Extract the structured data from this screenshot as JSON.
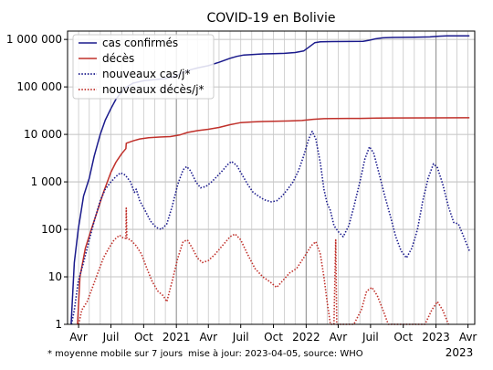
{
  "chart_data": {
    "type": "line",
    "title": "COVID-19 en Bolivie",
    "yscale": "log",
    "ylim": [
      1,
      1500000
    ],
    "xlim": [
      "2020-03-01",
      "2023-04-20"
    ],
    "grid": true,
    "legend_position": "top-left",
    "y_ticks": [
      {
        "value": 1,
        "label": "1"
      },
      {
        "value": 10,
        "label": "10"
      },
      {
        "value": 100,
        "label": "100"
      },
      {
        "value": 1000,
        "label": "1 000"
      },
      {
        "value": 10000,
        "label": "10 000"
      },
      {
        "value": 100000,
        "label": "100 000"
      },
      {
        "value": 1000000,
        "label": "1 000 000"
      }
    ],
    "x_ticks": [
      {
        "date": "2020-04-01",
        "label": "Avr"
      },
      {
        "date": "2020-07-01",
        "label": "Juil"
      },
      {
        "date": "2020-10-01",
        "label": "Oct"
      },
      {
        "date": "2021-01-01",
        "label": "2021"
      },
      {
        "date": "2021-04-01",
        "label": "Avr"
      },
      {
        "date": "2021-07-01",
        "label": "Juil"
      },
      {
        "date": "2021-10-01",
        "label": "Oct"
      },
      {
        "date": "2022-01-01",
        "label": "2022"
      },
      {
        "date": "2022-04-01",
        "label": "Avr"
      },
      {
        "date": "2022-07-01",
        "label": "Juil"
      },
      {
        "date": "2022-10-01",
        "label": "Oct"
      },
      {
        "date": "2023-01-01",
        "label": "2023"
      },
      {
        "date": "2023-04-01",
        "label": "Avr"
      }
    ],
    "x_subtitle": "2023",
    "series": [
      {
        "name": "cas confirmés",
        "color": "#1a1a8c",
        "style": "solid",
        "points": [
          [
            "2020-03-11",
            1
          ],
          [
            "2020-03-20",
            20
          ],
          [
            "2020-03-31",
            100
          ],
          [
            "2020-04-15",
            500
          ],
          [
            "2020-05-01",
            1200
          ],
          [
            "2020-05-15",
            3500
          ],
          [
            "2020-06-01",
            10000
          ],
          [
            "2020-06-15",
            20000
          ],
          [
            "2020-07-01",
            35000
          ],
          [
            "2020-07-15",
            55000
          ],
          [
            "2020-08-01",
            80000
          ],
          [
            "2020-08-15",
            100000
          ],
          [
            "2020-09-01",
            120000
          ],
          [
            "2020-10-01",
            135000
          ],
          [
            "2020-11-01",
            143000
          ],
          [
            "2020-12-01",
            150000
          ],
          [
            "2020-12-20",
            160000
          ],
          [
            "2021-01-10",
            185000
          ],
          [
            "2021-01-25",
            210000
          ],
          [
            "2021-02-10",
            230000
          ],
          [
            "2021-03-01",
            250000
          ],
          [
            "2021-04-01",
            280000
          ],
          [
            "2021-05-01",
            330000
          ],
          [
            "2021-06-01",
            400000
          ],
          [
            "2021-06-20",
            440000
          ],
          [
            "2021-07-10",
            470000
          ],
          [
            "2021-08-01",
            480000
          ],
          [
            "2021-09-01",
            495000
          ],
          [
            "2021-10-01",
            502000
          ],
          [
            "2021-11-01",
            510000
          ],
          [
            "2021-12-01",
            530000
          ],
          [
            "2021-12-25",
            570000
          ],
          [
            "2022-01-10",
            700000
          ],
          [
            "2022-01-25",
            850000
          ],
          [
            "2022-02-10",
            890000
          ],
          [
            "2022-03-15",
            900000
          ],
          [
            "2022-05-01",
            905000
          ],
          [
            "2022-06-10",
            910000
          ],
          [
            "2022-06-25",
            950000
          ],
          [
            "2022-07-15",
            1030000
          ],
          [
            "2022-08-05",
            1080000
          ],
          [
            "2022-09-01",
            1100000
          ],
          [
            "2022-11-01",
            1110000
          ],
          [
            "2022-12-15",
            1130000
          ],
          [
            "2023-01-10",
            1170000
          ],
          [
            "2023-02-01",
            1185000
          ],
          [
            "2023-04-05",
            1190000
          ]
        ]
      },
      {
        "name": "décès",
        "color": "#c0302a",
        "style": "solid",
        "points": [
          [
            "2020-03-29",
            1
          ],
          [
            "2020-04-05",
            10
          ],
          [
            "2020-04-20",
            40
          ],
          [
            "2020-05-05",
            90
          ],
          [
            "2020-05-20",
            200
          ],
          [
            "2020-06-10",
            600
          ],
          [
            "2020-07-01",
            1600
          ],
          [
            "2020-07-15",
            2600
          ],
          [
            "2020-08-01",
            4000
          ],
          [
            "2020-08-12",
            5000
          ],
          [
            "2020-08-13",
            6500
          ],
          [
            "2020-09-01",
            7300
          ],
          [
            "2020-09-20",
            8000
          ],
          [
            "2020-10-15",
            8500
          ],
          [
            "2020-11-15",
            8800
          ],
          [
            "2020-12-15",
            9000
          ],
          [
            "2021-01-10",
            9700
          ],
          [
            "2021-02-01",
            11000
          ],
          [
            "2021-03-01",
            12000
          ],
          [
            "2021-04-01",
            12800
          ],
          [
            "2021-05-01",
            14000
          ],
          [
            "2021-06-01",
            16000
          ],
          [
            "2021-07-01",
            17700
          ],
          [
            "2021-08-01",
            18300
          ],
          [
            "2021-09-01",
            18700
          ],
          [
            "2021-10-01",
            18900
          ],
          [
            "2021-11-15",
            19200
          ],
          [
            "2021-12-20",
            19600
          ],
          [
            "2022-01-20",
            20800
          ],
          [
            "2022-02-20",
            21400
          ],
          [
            "2022-03-20",
            21600
          ],
          [
            "2022-06-01",
            21700
          ],
          [
            "2022-07-20",
            22000
          ],
          [
            "2022-09-01",
            22200
          ],
          [
            "2023-01-01",
            22300
          ],
          [
            "2023-04-05",
            22350
          ]
        ]
      },
      {
        "name": "nouveaux cas/j*",
        "color": "#1a1a8c",
        "style": "dotted",
        "points": [
          [
            "2020-03-12",
            1
          ],
          [
            "2020-03-20",
            2
          ],
          [
            "2020-03-31",
            8
          ],
          [
            "2020-04-15",
            20
          ],
          [
            "2020-05-01",
            60
          ],
          [
            "2020-05-15",
            150
          ],
          [
            "2020-06-01",
            400
          ],
          [
            "2020-06-15",
            700
          ],
          [
            "2020-07-01",
            1000
          ],
          [
            "2020-07-15",
            1300
          ],
          [
            "2020-07-28",
            1550
          ],
          [
            "2020-08-10",
            1400
          ],
          [
            "2020-08-25",
            1000
          ],
          [
            "2020-09-05",
            600
          ],
          [
            "2020-09-10",
            700
          ],
          [
            "2020-09-20",
            400
          ],
          [
            "2020-10-05",
            250
          ],
          [
            "2020-10-20",
            150
          ],
          [
            "2020-11-05",
            110
          ],
          [
            "2020-11-20",
            100
          ],
          [
            "2020-12-05",
            130
          ],
          [
            "2020-12-20",
            300
          ],
          [
            "2021-01-05",
            900
          ],
          [
            "2021-01-20",
            1800
          ],
          [
            "2021-01-30",
            2100
          ],
          [
            "2021-02-10",
            1700
          ],
          [
            "2021-02-25",
            1000
          ],
          [
            "2021-03-10",
            750
          ],
          [
            "2021-03-25",
            800
          ],
          [
            "2021-04-10",
            1000
          ],
          [
            "2021-04-25",
            1300
          ],
          [
            "2021-05-10",
            1700
          ],
          [
            "2021-05-25",
            2300
          ],
          [
            "2021-06-05",
            2700
          ],
          [
            "2021-06-20",
            2200
          ],
          [
            "2021-07-05",
            1400
          ],
          [
            "2021-07-20",
            900
          ],
          [
            "2021-08-05",
            600
          ],
          [
            "2021-08-20",
            500
          ],
          [
            "2021-09-05",
            420
          ],
          [
            "2021-09-25",
            380
          ],
          [
            "2021-10-10",
            400
          ],
          [
            "2021-10-25",
            500
          ],
          [
            "2021-11-10",
            700
          ],
          [
            "2021-11-25",
            1000
          ],
          [
            "2021-12-10",
            1700
          ],
          [
            "2021-12-25",
            3500
          ],
          [
            "2022-01-08",
            8000
          ],
          [
            "2022-01-18",
            11500
          ],
          [
            "2022-01-28",
            8000
          ],
          [
            "2022-02-10",
            2500
          ],
          [
            "2022-02-20",
            700
          ],
          [
            "2022-03-01",
            350
          ],
          [
            "2022-03-10",
            250
          ],
          [
            "2022-03-20",
            120
          ],
          [
            "2022-04-01",
            90
          ],
          [
            "2022-04-15",
            70
          ],
          [
            "2022-05-01",
            120
          ],
          [
            "2022-05-15",
            300
          ],
          [
            "2022-06-01",
            1000
          ],
          [
            "2022-06-15",
            3000
          ],
          [
            "2022-06-28",
            5500
          ],
          [
            "2022-07-10",
            4000
          ],
          [
            "2022-07-25",
            1500
          ],
          [
            "2022-08-10",
            500
          ],
          [
            "2022-08-25",
            200
          ],
          [
            "2022-09-10",
            70
          ],
          [
            "2022-09-25",
            35
          ],
          [
            "2022-10-10",
            25
          ],
          [
            "2022-10-25",
            40
          ],
          [
            "2022-11-10",
            100
          ],
          [
            "2022-11-25",
            400
          ],
          [
            "2022-12-10",
            1200
          ],
          [
            "2022-12-25",
            2400
          ],
          [
            "2023-01-05",
            2000
          ],
          [
            "2023-01-20",
            900
          ],
          [
            "2023-02-05",
            300
          ],
          [
            "2023-02-20",
            140
          ],
          [
            "2023-03-05",
            130
          ],
          [
            "2023-03-20",
            70
          ],
          [
            "2023-04-05",
            35
          ]
        ]
      },
      {
        "name": "nouveaux décès/j*",
        "color": "#c0302a",
        "style": "dotted",
        "points": [
          [
            "2020-04-01",
            1
          ],
          [
            "2020-04-10",
            2
          ],
          [
            "2020-04-25",
            3
          ],
          [
            "2020-05-10",
            6
          ],
          [
            "2020-05-25",
            12
          ],
          [
            "2020-06-10",
            25
          ],
          [
            "2020-06-25",
            40
          ],
          [
            "2020-07-10",
            60
          ],
          [
            "2020-07-25",
            75
          ],
          [
            "2020-08-05",
            65
          ],
          [
            "2020-08-12",
            65
          ],
          [
            "2020-08-13",
            280
          ],
          [
            "2020-08-15",
            65
          ],
          [
            "2020-08-25",
            60
          ],
          [
            "2020-09-10",
            45
          ],
          [
            "2020-09-25",
            30
          ],
          [
            "2020-10-10",
            15
          ],
          [
            "2020-10-25",
            8
          ],
          [
            "2020-11-10",
            5
          ],
          [
            "2020-11-25",
            4
          ],
          [
            "2020-12-05",
            3
          ],
          [
            "2020-12-20",
            8
          ],
          [
            "2021-01-05",
            25
          ],
          [
            "2021-01-20",
            55
          ],
          [
            "2021-02-01",
            60
          ],
          [
            "2021-02-15",
            40
          ],
          [
            "2021-03-01",
            25
          ],
          [
            "2021-03-15",
            20
          ],
          [
            "2021-04-01",
            22
          ],
          [
            "2021-04-20",
            30
          ],
          [
            "2021-05-10",
            45
          ],
          [
            "2021-06-01",
            70
          ],
          [
            "2021-06-15",
            80
          ],
          [
            "2021-07-01",
            60
          ],
          [
            "2021-07-20",
            30
          ],
          [
            "2021-08-10",
            15
          ],
          [
            "2021-09-01",
            10
          ],
          [
            "2021-09-20",
            8
          ],
          [
            "2021-10-10",
            6
          ],
          [
            "2021-10-25",
            8
          ],
          [
            "2021-11-15",
            12
          ],
          [
            "2021-12-05",
            15
          ],
          [
            "2021-12-25",
            25
          ],
          [
            "2022-01-15",
            45
          ],
          [
            "2022-01-28",
            55
          ],
          [
            "2022-02-10",
            30
          ],
          [
            "2022-02-20",
            10
          ],
          [
            "2022-03-01",
            3
          ],
          [
            "2022-03-10",
            1
          ],
          [
            "2022-03-20",
            1
          ],
          [
            "2022-03-25",
            60
          ],
          [
            "2022-03-28",
            1
          ],
          [
            "2022-04-20",
            1
          ],
          [
            "2022-05-15",
            1
          ],
          [
            "2022-06-05",
            2
          ],
          [
            "2022-06-20",
            5
          ],
          [
            "2022-07-05",
            6
          ],
          [
            "2022-07-20",
            4
          ],
          [
            "2022-08-05",
            2
          ],
          [
            "2022-08-20",
            1
          ],
          [
            "2022-12-01",
            1
          ],
          [
            "2022-12-20",
            2
          ],
          [
            "2023-01-05",
            3
          ],
          [
            "2023-01-20",
            2
          ],
          [
            "2023-02-05",
            1
          ]
        ]
      }
    ]
  },
  "footnote": {
    "left": "* moyenne mobile sur 7 jours",
    "right": "mise à jour: 2023-04-05, source: WHO"
  }
}
